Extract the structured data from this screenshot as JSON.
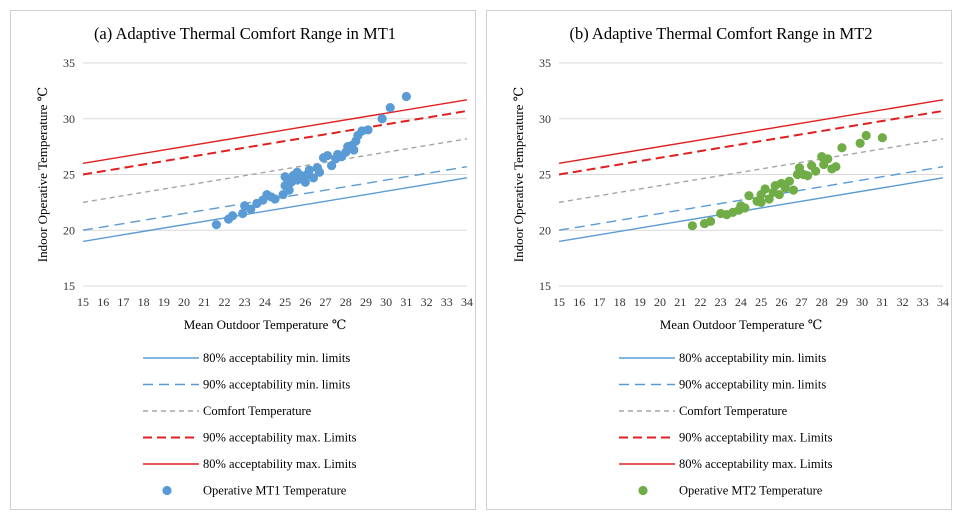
{
  "colors": {
    "min80": "#5B9BD5",
    "min90": "#5B9BD5",
    "comfort": "#A5A5A5",
    "max90": "#E02020",
    "max80": "#E02020",
    "mt1": "#5B9BD5",
    "mt2": "#70AD47",
    "grid": "#D9D9D9"
  },
  "chart_data": [
    {
      "type": "scatter",
      "title": "(a) Adaptive Thermal Comfort Range in MT1",
      "xlabel": "Mean Outdoor Temperature  ℃",
      "ylabel": "Indoor Operative Temperature  ℃",
      "xlim": [
        15,
        34
      ],
      "ylim": [
        15,
        35
      ],
      "xticks": [
        "15",
        "16",
        "17",
        "18",
        "19",
        "20",
        "21",
        "22",
        "23",
        "24",
        "25",
        "26",
        "27",
        "28",
        "29",
        "30",
        "31",
        "32",
        "33",
        "34"
      ],
      "yticks": [
        "15",
        "20",
        "25",
        "30",
        "35"
      ],
      "grid": "horizontal",
      "legend_position": "bottom",
      "lines": [
        {
          "name": "80% acceptability min. limits",
          "style": "solid",
          "color": "min80",
          "x": [
            15,
            34
          ],
          "y": [
            19.0,
            24.7
          ]
        },
        {
          "name": "90% acceptability min. limits",
          "style": "dashed",
          "color": "min90",
          "x": [
            15,
            34
          ],
          "y": [
            20.0,
            25.7
          ]
        },
        {
          "name": "Comfort Temperature",
          "style": "dotted",
          "color": "comfort",
          "x": [
            15,
            34
          ],
          "y": [
            22.5,
            28.2
          ]
        },
        {
          "name": "90% acceptability max. Limits",
          "style": "dashed-thick",
          "color": "max90",
          "x": [
            15,
            34
          ],
          "y": [
            25.0,
            30.7
          ]
        },
        {
          "name": "80% acceptability max. Limits",
          "style": "solid",
          "color": "max80",
          "x": [
            15,
            34
          ],
          "y": [
            26.0,
            31.7
          ]
        }
      ],
      "series": [
        {
          "name": "Operative MT1 Temperature",
          "color": "mt1",
          "points": [
            [
              21.6,
              20.5
            ],
            [
              22.2,
              21.0
            ],
            [
              22.4,
              21.3
            ],
            [
              22.9,
              21.5
            ],
            [
              23.0,
              22.2
            ],
            [
              23.3,
              21.9
            ],
            [
              23.6,
              22.4
            ],
            [
              23.9,
              22.7
            ],
            [
              24.1,
              23.2
            ],
            [
              24.3,
              23.0
            ],
            [
              24.5,
              22.8
            ],
            [
              24.9,
              23.2
            ],
            [
              25.0,
              24.0
            ],
            [
              25.0,
              24.8
            ],
            [
              25.2,
              23.6
            ],
            [
              25.3,
              24.3
            ],
            [
              25.4,
              24.9
            ],
            [
              25.6,
              25.2
            ],
            [
              25.6,
              24.5
            ],
            [
              25.8,
              24.9
            ],
            [
              26.0,
              24.3
            ],
            [
              26.1,
              25.0
            ],
            [
              26.2,
              25.4
            ],
            [
              26.4,
              24.7
            ],
            [
              26.6,
              25.6
            ],
            [
              26.7,
              25.2
            ],
            [
              26.9,
              26.5
            ],
            [
              27.1,
              26.7
            ],
            [
              27.3,
              25.8
            ],
            [
              27.5,
              26.4
            ],
            [
              27.6,
              26.8
            ],
            [
              27.8,
              26.6
            ],
            [
              28.0,
              27.0
            ],
            [
              28.1,
              27.5
            ],
            [
              28.3,
              27.6
            ],
            [
              28.4,
              27.2
            ],
            [
              28.5,
              28.0
            ],
            [
              28.6,
              28.5
            ],
            [
              28.8,
              28.9
            ],
            [
              29.1,
              29.0
            ],
            [
              29.8,
              30.0
            ],
            [
              30.2,
              31.0
            ],
            [
              31.0,
              32.0
            ]
          ]
        }
      ]
    },
    {
      "type": "scatter",
      "title": "(b) Adaptive Thermal Comfort Range in MT2",
      "xlabel": "Mean Outdoor Temperature  ℃",
      "ylabel": "Indoor Operative Temperature  ℃",
      "xlim": [
        15,
        34
      ],
      "ylim": [
        15,
        35
      ],
      "xticks": [
        "15",
        "16",
        "17",
        "18",
        "19",
        "20",
        "21",
        "22",
        "23",
        "24",
        "25",
        "26",
        "27",
        "28",
        "29",
        "30",
        "31",
        "32",
        "33",
        "34"
      ],
      "yticks": [
        "15",
        "20",
        "25",
        "30",
        "35"
      ],
      "grid": "horizontal",
      "legend_position": "bottom",
      "lines": [
        {
          "name": "80% acceptability min. limits",
          "style": "solid",
          "color": "min80",
          "x": [
            15,
            34
          ],
          "y": [
            19.0,
            24.7
          ]
        },
        {
          "name": "90% acceptability min. limits",
          "style": "dashed",
          "color": "min90",
          "x": [
            15,
            34
          ],
          "y": [
            20.0,
            25.7
          ]
        },
        {
          "name": "Comfort Temperature",
          "style": "dotted",
          "color": "comfort",
          "x": [
            15,
            34
          ],
          "y": [
            22.5,
            28.2
          ]
        },
        {
          "name": "90% acceptability max. Limits",
          "style": "dashed-thick",
          "color": "max90",
          "x": [
            15,
            34
          ],
          "y": [
            25.0,
            30.7
          ]
        },
        {
          "name": "80% acceptability max. Limits",
          "style": "solid",
          "color": "max80",
          "x": [
            15,
            34
          ],
          "y": [
            26.0,
            31.7
          ]
        }
      ],
      "series": [
        {
          "name": "Operative MT2 Temperature",
          "color": "mt2",
          "points": [
            [
              21.6,
              20.4
            ],
            [
              22.2,
              20.6
            ],
            [
              22.5,
              20.8
            ],
            [
              23.0,
              21.5
            ],
            [
              23.3,
              21.4
            ],
            [
              23.6,
              21.6
            ],
            [
              23.9,
              21.8
            ],
            [
              24.0,
              22.2
            ],
            [
              24.2,
              22.0
            ],
            [
              24.4,
              23.1
            ],
            [
              24.8,
              22.6
            ],
            [
              25.0,
              23.2
            ],
            [
              25.0,
              22.5
            ],
            [
              25.2,
              23.7
            ],
            [
              25.4,
              22.8
            ],
            [
              25.6,
              23.4
            ],
            [
              25.7,
              24.0
            ],
            [
              25.9,
              23.2
            ],
            [
              26.0,
              24.2
            ],
            [
              26.2,
              23.8
            ],
            [
              26.4,
              24.4
            ],
            [
              26.6,
              23.6
            ],
            [
              26.8,
              25.0
            ],
            [
              26.9,
              25.6
            ],
            [
              27.1,
              25.0
            ],
            [
              27.3,
              24.9
            ],
            [
              27.5,
              25.8
            ],
            [
              27.7,
              25.3
            ],
            [
              28.0,
              26.6
            ],
            [
              28.1,
              25.9
            ],
            [
              28.3,
              26.4
            ],
            [
              28.5,
              25.5
            ],
            [
              28.7,
              25.7
            ],
            [
              29.0,
              27.4
            ],
            [
              29.9,
              27.8
            ],
            [
              30.2,
              28.5
            ],
            [
              31.0,
              28.3
            ]
          ]
        }
      ]
    }
  ]
}
